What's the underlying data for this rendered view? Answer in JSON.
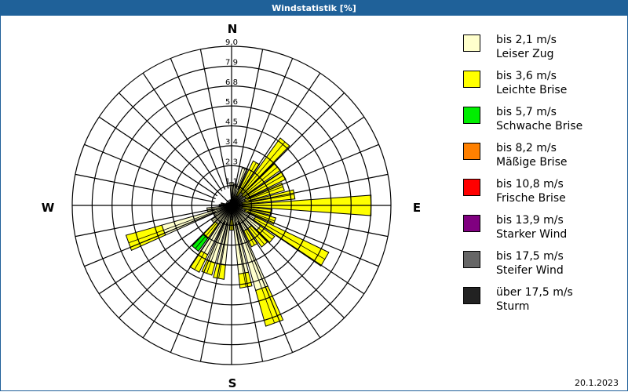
{
  "window": {
    "title": "Windstatistik [%]",
    "date": "20.1.2023"
  },
  "legend": [
    {
      "speed": "bis 2,1 m/s",
      "name": "Leiser Zug",
      "color": "#ffffcc"
    },
    {
      "speed": "bis 3,6 m/s",
      "name": "Leichte Brise",
      "color": "#ffff00"
    },
    {
      "speed": "bis 5,7 m/s",
      "name": "Schwache Brise",
      "color": "#00ee00"
    },
    {
      "speed": "bis 8,2 m/s",
      "name": "Mäßige Brise",
      "color": "#ff8000"
    },
    {
      "speed": "bis 10,8 m/s",
      "name": "Frische Brise",
      "color": "#ff0000"
    },
    {
      "speed": "bis 13,9 m/s",
      "name": "Starker Wind",
      "color": "#800080"
    },
    {
      "speed": "bis 17,5 m/s",
      "name": "Steifer Wind",
      "color": "#666666"
    },
    {
      "speed": "über 17,5 m/s",
      "name": "Sturm",
      "color": "#222222"
    }
  ],
  "chart_data": {
    "type": "polar-stacked-bar (wind rose)",
    "title": "Windstatistik [%]",
    "directions_labels": {
      "N": "N",
      "E": "E",
      "S": "S",
      "W": "W"
    },
    "ring_labels": [
      "1,1",
      "2,3",
      "3,4",
      "4,5",
      "5,6",
      "6,8",
      "7,9",
      "9,0"
    ],
    "ring_values": [
      1.125,
      2.25,
      3.375,
      4.5,
      5.625,
      6.75,
      7.875,
      9.0
    ],
    "rmax": 9.0,
    "sector_width_deg": 10,
    "directions_deg": [
      0,
      10,
      20,
      30,
      40,
      50,
      60,
      70,
      80,
      90,
      100,
      110,
      120,
      130,
      140,
      150,
      160,
      170,
      180,
      190,
      200,
      210,
      220,
      230,
      240,
      250,
      260,
      270,
      280,
      290,
      300,
      310,
      320,
      330,
      340,
      350
    ],
    "series": [
      {
        "name": "bis 2,1 m/s Leiser Zug",
        "color": "#ffffcc",
        "values": [
          1.3,
          1.2,
          2.2,
          0.6,
          0.9,
          0.8,
          0.9,
          0.8,
          0.6,
          0.5,
          0.6,
          0.8,
          1.5,
          2.0,
          1.6,
          1.6,
          5.0,
          3.9,
          0.8,
          3.4,
          3.4,
          3.1,
          1.3,
          1.4,
          1.1,
          4.1,
          1.4,
          0.7,
          0.6,
          0.3,
          0.2,
          0.2,
          0.2,
          0.2,
          0.2,
          0.3
        ]
      },
      {
        "name": "bis 3,6 m/s Leichte Brise",
        "color": "#ffff00",
        "values": [
          0,
          0,
          0,
          2.2,
          3.8,
          2.6,
          2.5,
          2.3,
          3.0,
          7.4,
          1.7,
          1.8,
          4.6,
          1.0,
          1.3,
          1.0,
          2.1,
          0.8,
          0.6,
          0.8,
          0.7,
          1.1,
          1.0,
          0,
          0,
          2.1,
          0,
          0,
          0,
          0,
          0,
          0,
          0,
          0,
          0,
          0
        ]
      },
      {
        "name": "bis 5,7 m/s Schwache Brise",
        "color": "#00ee00",
        "values": [
          0,
          0,
          0,
          0,
          0,
          0,
          0,
          0,
          0,
          0,
          0,
          0,
          0,
          0,
          0,
          0,
          0,
          0,
          0,
          0,
          0,
          0,
          0.9,
          0,
          0,
          0,
          0,
          0,
          0,
          0,
          0,
          0,
          0,
          0,
          0,
          0
        ]
      },
      {
        "name": "bis 8,2 m/s Mäßige Brise",
        "color": "#ff8000",
        "values": []
      },
      {
        "name": "bis 10,8 m/s Frische Brise",
        "color": "#ff0000",
        "values": []
      },
      {
        "name": "bis 13,9 m/s Starker Wind",
        "color": "#800080",
        "values": []
      },
      {
        "name": "bis 17,5 m/s Steifer Wind",
        "color": "#666666",
        "values": []
      },
      {
        "name": "über 17,5 m/s Sturm",
        "color": "#222222",
        "values": []
      }
    ],
    "grid": true,
    "legend_position": "right",
    "unit": "%"
  }
}
